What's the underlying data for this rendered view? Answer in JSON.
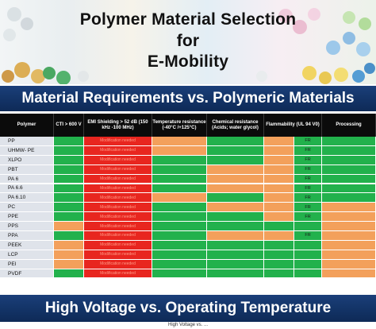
{
  "title": {
    "line1": "Polymer Material Selection",
    "line2": "for",
    "line3": "E-Mobility"
  },
  "banner_top": "Material Requirements vs. Polymeric Materials",
  "banner_bottom": "High Voltage vs. Operating Temperature",
  "footer": "High Voltage vs. ...",
  "colors": {
    "green": "#22b14c",
    "red": "#e8261f",
    "orange": "#f3a05b",
    "banner_blue": "#143569",
    "header_black": "#0b0b0b"
  },
  "table": {
    "columns": [
      {
        "key": "polymer",
        "label": "Polymer"
      },
      {
        "key": "cti",
        "label": "CTI > 600 V"
      },
      {
        "key": "emi",
        "label": "EMI Shielding > 52 dB (150 kHz -100 MHz)"
      },
      {
        "key": "temp",
        "label": "Temperature resistance (-40°C /+125°C)"
      },
      {
        "key": "chem",
        "label": "Chemical resistance (Acids; water glycol)"
      },
      {
        "key": "flam",
        "label": "Flammability (UL 94 V0)"
      },
      {
        "key": "proc",
        "label": "Processing"
      }
    ],
    "emi_note": "Modification needed",
    "fr_label": "FR",
    "rows": [
      {
        "polymer": "PP",
        "cti": "g",
        "emi": "r",
        "temp": "o",
        "chem": "g",
        "flam": [
          "o",
          "g"
        ],
        "flam_fr": true,
        "proc": "g"
      },
      {
        "polymer": "UHMW- PE",
        "cti": "g",
        "emi": "r",
        "temp": "o",
        "chem": "g",
        "flam": [
          "o",
          "g"
        ],
        "flam_fr": true,
        "proc": "g"
      },
      {
        "polymer": "XLPO",
        "cti": "g",
        "emi": "r",
        "temp": "g",
        "chem": "g",
        "flam": [
          "o",
          "g"
        ],
        "flam_fr": true,
        "proc": "g"
      },
      {
        "polymer": "PBT",
        "cti": "g",
        "emi": "r",
        "temp": "g",
        "chem": "o",
        "flam": [
          "o",
          "g"
        ],
        "flam_fr": true,
        "proc": "g"
      },
      {
        "polymer": "PA 6",
        "cti": "g",
        "emi": "r",
        "temp": "g",
        "chem": "o",
        "flam": [
          "o",
          "g"
        ],
        "flam_fr": true,
        "proc": "g"
      },
      {
        "polymer": "PA 6.6",
        "cti": "g",
        "emi": "r",
        "temp": "g",
        "chem": "o",
        "flam": [
          "o",
          "g"
        ],
        "flam_fr": true,
        "proc": "g"
      },
      {
        "polymer": "PA 6.10",
        "cti": "g",
        "emi": "r",
        "temp": "o",
        "chem": "g",
        "flam": [
          "o",
          "g"
        ],
        "flam_fr": true,
        "proc": "g"
      },
      {
        "polymer": "PC",
        "cti": "g",
        "emi": "r",
        "temp": "g",
        "chem": "o",
        "flam": [
          "o",
          "g"
        ],
        "flam_fr": true,
        "proc": "o"
      },
      {
        "polymer": "PPE",
        "cti": "g",
        "emi": "r",
        "temp": "g",
        "chem": "g",
        "flam": [
          "o",
          "g"
        ],
        "flam_fr": true,
        "proc": "o"
      },
      {
        "polymer": "PPS",
        "cti": "o",
        "emi": "r",
        "temp": "g",
        "chem": "g",
        "flam": [
          "g",
          "g"
        ],
        "flam_fr": false,
        "proc": "o"
      },
      {
        "polymer": "PPA",
        "cti": "g",
        "emi": "r",
        "temp": "g",
        "chem": "o",
        "flam": [
          "o",
          "g"
        ],
        "flam_fr": true,
        "proc": "o"
      },
      {
        "polymer": "PEEK",
        "cti": "o",
        "emi": "r",
        "temp": "g",
        "chem": "g",
        "flam": [
          "g",
          "g"
        ],
        "flam_fr": false,
        "proc": "o"
      },
      {
        "polymer": "LCP",
        "cti": "o",
        "emi": "r",
        "temp": "g",
        "chem": "g",
        "flam": [
          "g",
          "g"
        ],
        "flam_fr": false,
        "proc": "o"
      },
      {
        "polymer": "PEI",
        "cti": "o",
        "emi": "r",
        "temp": "g",
        "chem": "g",
        "flam": [
          "g",
          "g"
        ],
        "flam_fr": false,
        "proc": "o"
      },
      {
        "polymer": "PVDF",
        "cti": "g",
        "emi": "r",
        "temp": "g",
        "chem": "g",
        "flam": [
          "g",
          "g"
        ],
        "flam_fr": false,
        "proc": "o"
      }
    ]
  }
}
